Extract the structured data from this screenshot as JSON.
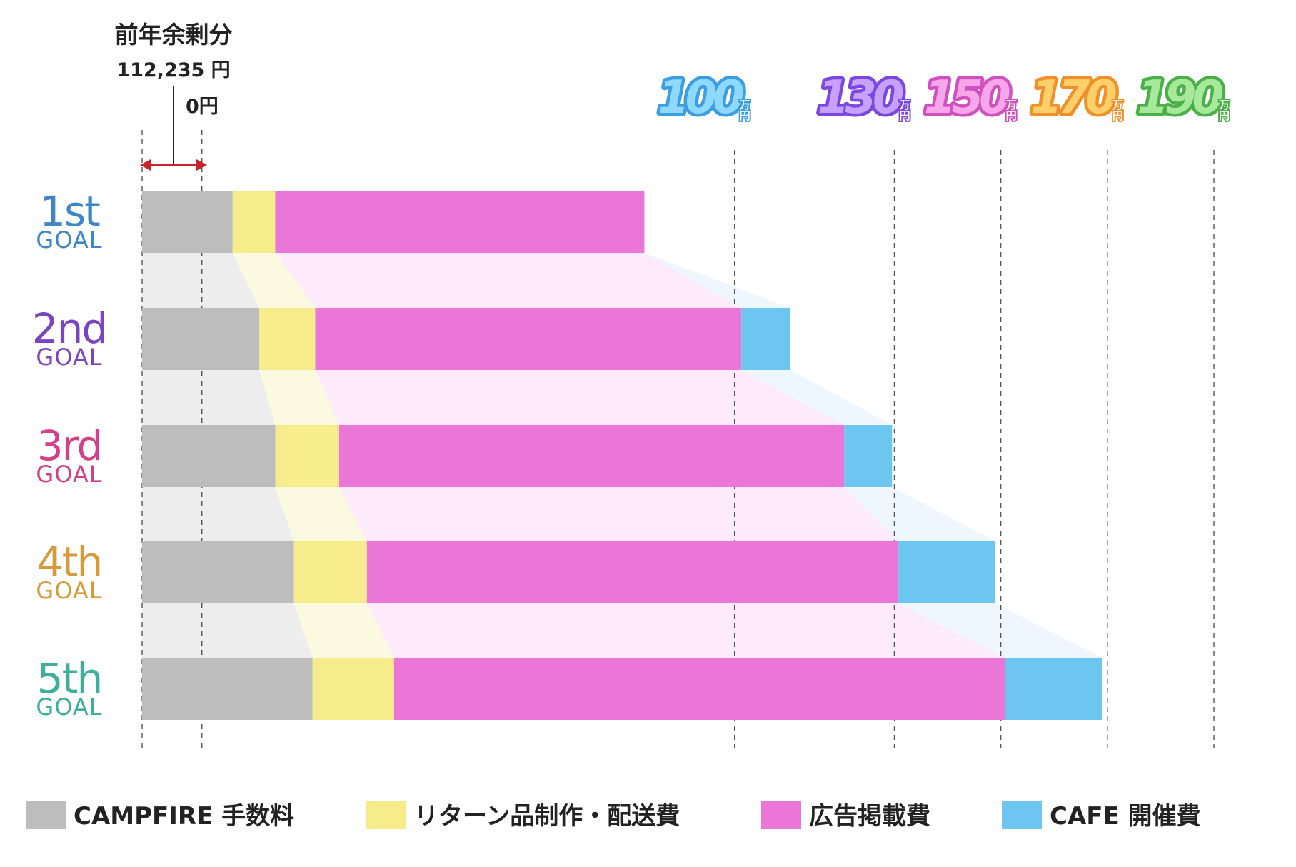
{
  "chart_data": {
    "type": "bar",
    "stacked": true,
    "orientation": "horizontal",
    "unit": "yen",
    "carryover": {
      "title": "前年余剰分",
      "amount_label": "112,235 円",
      "zero_label": "0円",
      "value": 112235
    },
    "categories": [
      {
        "num": "1st",
        "word": "GOAL",
        "color": "#3f86c9"
      },
      {
        "num": "2nd",
        "word": "GOAL",
        "color": "#7b45c0"
      },
      {
        "num": "3rd",
        "word": "GOAL",
        "color": "#d43f88"
      },
      {
        "num": "4th",
        "word": "GOAL",
        "color": "#d69a3a"
      },
      {
        "num": "5th",
        "word": "GOAL",
        "color": "#3fae9a"
      }
    ],
    "series": [
      {
        "name": "CAMPFIRE 手数料",
        "color": "#bdbdbd",
        "ghost": "#ededed",
        "values": [
          170000,
          220000,
          250000,
          285000,
          320000
        ]
      },
      {
        "name": "リターン品制作・配送費",
        "color": "#f7ec8c",
        "ghost": "#fcf9e1",
        "values": [
          80000,
          105000,
          120000,
          137000,
          153000
        ]
      },
      {
        "name": "広告掲載費",
        "color": "#ea76d8",
        "ghost": "#fdeafb",
        "values": [
          693000,
          800000,
          948000,
          998000,
          1147000
        ]
      },
      {
        "name": "CAFE 開催費",
        "color": "#6cc6f0",
        "ghost": "#edf7fd",
        "values": [
          0,
          92000,
          90000,
          182000,
          182000
        ]
      }
    ],
    "milestones": [
      {
        "value": 1000000,
        "num": "100",
        "unit": "万円",
        "color": "#8fd8ff",
        "stroke": "#3a9ee0"
      },
      {
        "value": 1300000,
        "num": "130",
        "unit": "万円",
        "color": "#c8a0ff",
        "stroke": "#7a48e0"
      },
      {
        "value": 1500000,
        "num": "150",
        "unit": "万円",
        "color": "#f7a6ea",
        "stroke": "#d050c0"
      },
      {
        "value": 1700000,
        "num": "170",
        "unit": "万円",
        "color": "#ffd06a",
        "stroke": "#f0902a"
      },
      {
        "value": 1900000,
        "num": "190",
        "unit": "万円",
        "color": "#a8e89a",
        "stroke": "#4cb04a"
      }
    ],
    "xlim": [
      -112235,
      1900000
    ]
  }
}
